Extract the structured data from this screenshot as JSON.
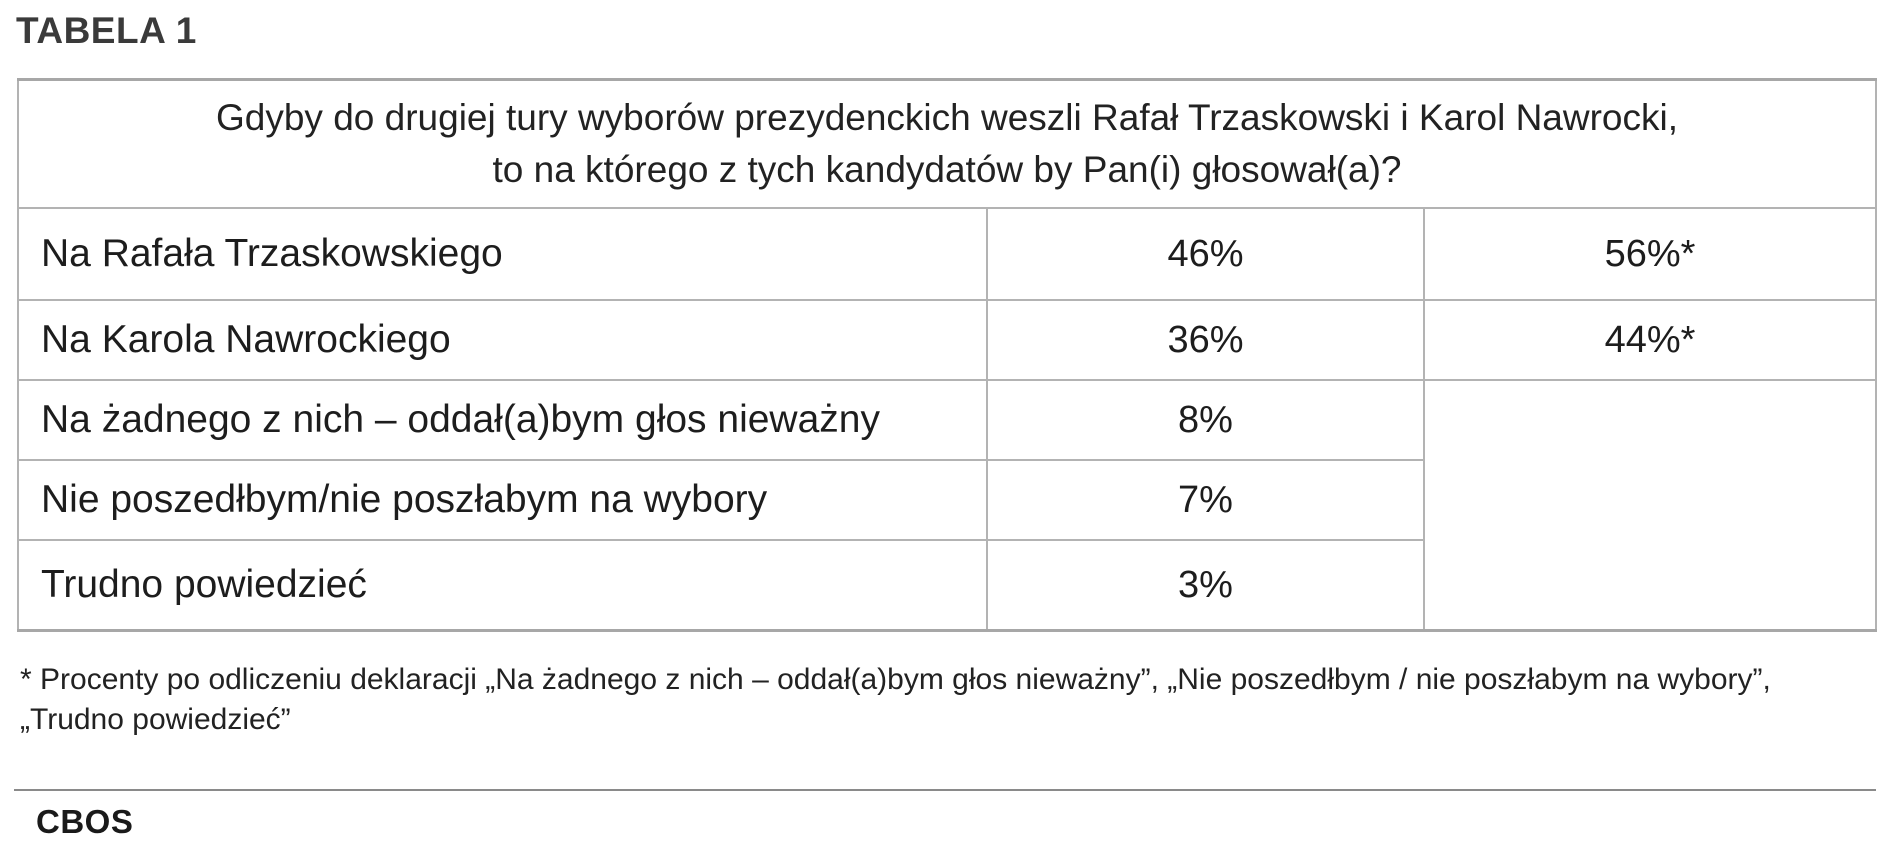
{
  "title": "TABELA 1",
  "question": {
    "line1": "Gdyby do drugiej tury wyborów prezydenckich weszli Rafał Trzaskowski i Karol Nawrocki,",
    "line2": "to na którego z tych kandydatów by Pan(i) głosował(a)?"
  },
  "rows": [
    {
      "label": "Na Rafała Trzaskowskiego",
      "value": "46%",
      "adjusted": "56%*"
    },
    {
      "label": "Na Karola Nawrockiego",
      "value": "36%",
      "adjusted": "44%*"
    },
    {
      "label": "Na żadnego z nich – oddał(a)bym głos nieważny",
      "value": "8%"
    },
    {
      "label": "Nie poszedłbym/nie poszłabym na wybory",
      "value": "7%"
    },
    {
      "label": "Trudno powiedzieć",
      "value": "3%"
    }
  ],
  "footnote": "* Procenty po odliczeniu deklaracji „Na żadnego z nich – oddał(a)bym głos nieważny”, „Nie poszedłbym / nie poszłabym na wybory”, „Trudno powiedzieć”",
  "source": "CBOS"
}
